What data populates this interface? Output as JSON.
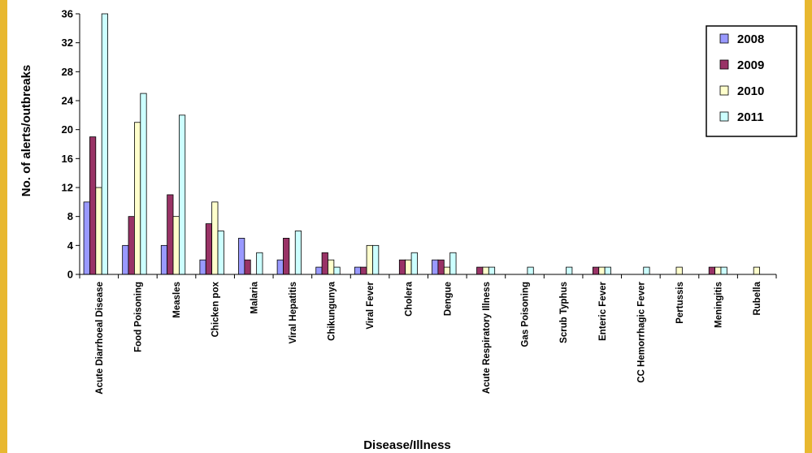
{
  "chart_data": {
    "type": "bar",
    "title": "",
    "xlabel": "Disease/Illness",
    "ylabel": "No. of alerts/outbreaks",
    "ylim": [
      0,
      36
    ],
    "yticks": [
      0,
      4,
      8,
      12,
      16,
      20,
      24,
      28,
      32,
      36
    ],
    "grid": false,
    "legend_position": "top-right",
    "categories": [
      "Acute Diarrhoeal Disease",
      "Food Poisoning",
      "Measles",
      "Chicken pox",
      "Malaria",
      "Viral Hepatitis",
      "Chikungunya",
      "Viral Fever",
      "Cholera",
      "Dengue",
      "Acute Respiratory Illness",
      "Gas Poisoning",
      "Scrub Typhus",
      "Enteric Fever",
      "CC Hemorrhagic Fever",
      "Pertussis",
      "Meningitis",
      "Rubella"
    ],
    "series": [
      {
        "name": "2008",
        "color": "#9999ff",
        "values": [
          10,
          4,
          4,
          2,
          5,
          2,
          1,
          1,
          0,
          2,
          0,
          0,
          0,
          0,
          0,
          0,
          0,
          0
        ]
      },
      {
        "name": "2009",
        "color": "#993366",
        "values": [
          19,
          8,
          11,
          7,
          2,
          5,
          3,
          1,
          2,
          2,
          1,
          0,
          0,
          1,
          0,
          0,
          1,
          0
        ]
      },
      {
        "name": "2010",
        "color": "#ffffcc",
        "values": [
          12,
          21,
          8,
          10,
          0,
          0,
          2,
          4,
          2,
          1,
          1,
          0,
          0,
          1,
          0,
          1,
          1,
          1
        ]
      },
      {
        "name": "2011",
        "color": "#ccffff",
        "values": [
          36,
          25,
          22,
          6,
          3,
          6,
          1,
          4,
          3,
          3,
          1,
          1,
          1,
          1,
          1,
          0,
          1,
          0
        ]
      }
    ]
  }
}
